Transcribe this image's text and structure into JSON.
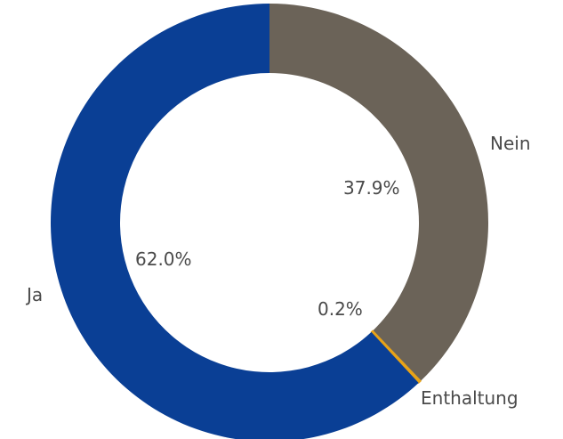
{
  "chart_data": {
    "type": "pie",
    "donut": true,
    "slices": [
      {
        "label": "Nein",
        "value": 37.9,
        "value_label": "37.9%",
        "color": "#6b6358"
      },
      {
        "label": "Enthaltung",
        "value": 0.2,
        "value_label": "0.2%",
        "color": "#e8a317"
      },
      {
        "label": "Ja",
        "value": 62.0,
        "value_label": "62.0%",
        "color": "#0a3f95"
      }
    ]
  }
}
